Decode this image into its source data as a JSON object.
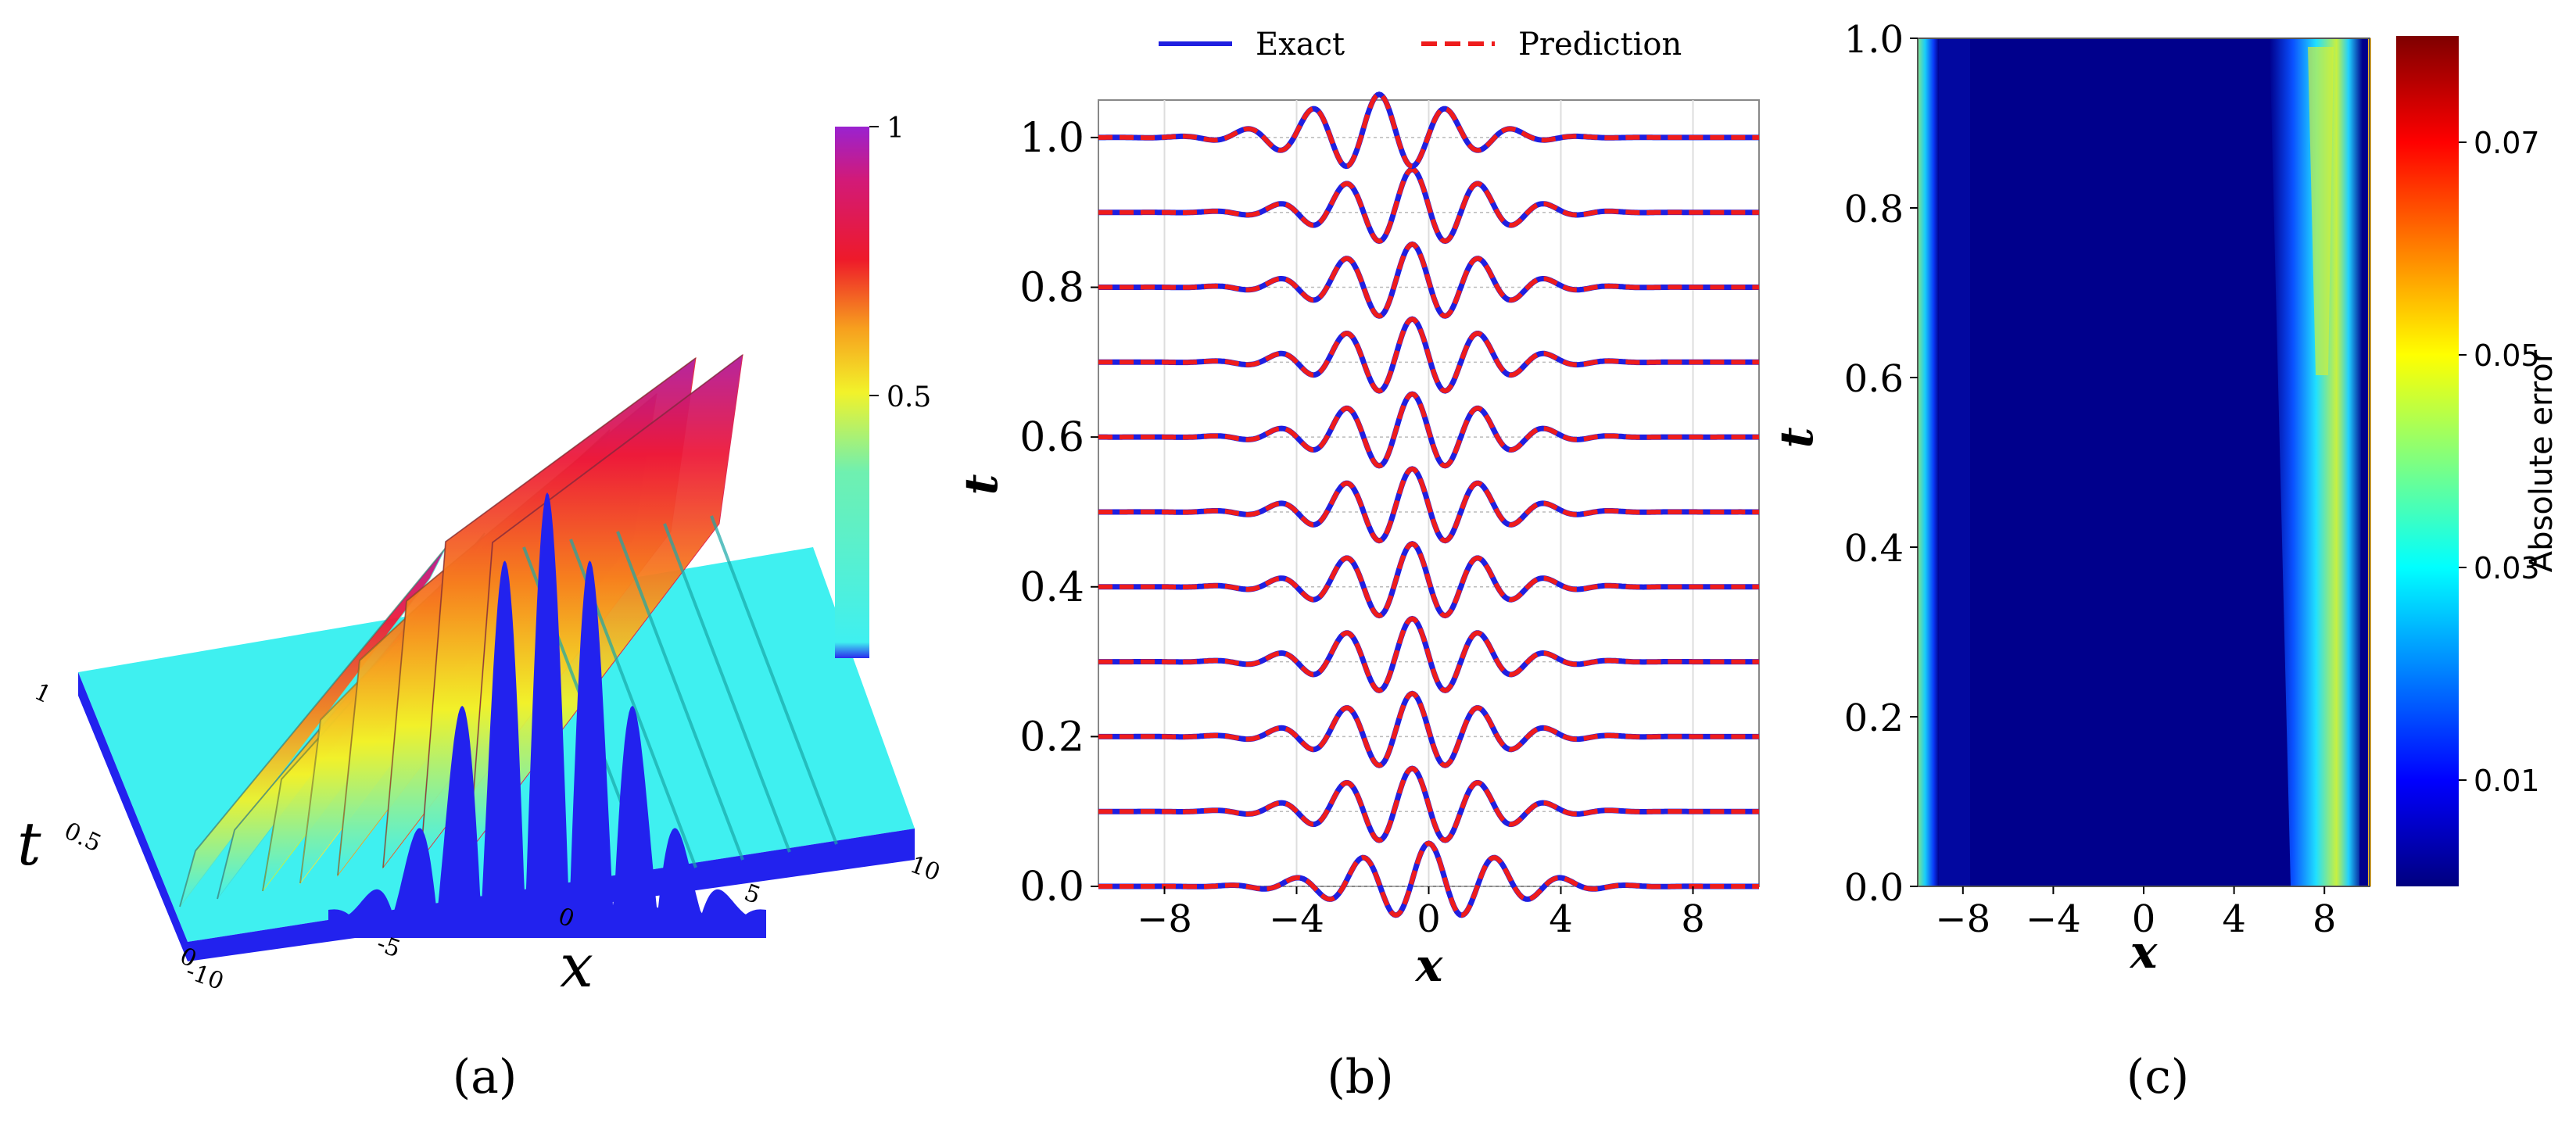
{
  "panel_a": {
    "caption": "(a)",
    "x_axis_label": "x",
    "t_axis_label": "t",
    "x_ticks": [
      "-10",
      "-5",
      "0",
      "5",
      "10"
    ],
    "t_ticks": [
      "0",
      "0.5",
      "1"
    ],
    "colorbar_ticks": [
      "1",
      "0.5"
    ],
    "colors": {
      "floor": "#2222ee",
      "cyan": "#3ff0f0"
    }
  },
  "panel_b": {
    "caption": "(b)",
    "xlabel": "x",
    "ylabel": "t",
    "legend": {
      "exact": "Exact",
      "prediction": "Prediction"
    },
    "x_ticks": [
      "−8",
      "−4",
      "0",
      "4",
      "8"
    ],
    "y_ticks": [
      "0.0",
      "0.2",
      "0.4",
      "0.6",
      "0.8",
      "1.0"
    ],
    "colors": {
      "exact": "#1f1fe0",
      "prediction": "#ee1c1c"
    }
  },
  "panel_c": {
    "caption": "(c)",
    "xlabel": "x",
    "ylabel": "t",
    "colorbar_label": "Absolute error",
    "x_ticks": [
      "−8",
      "−4",
      "0",
      "4",
      "8"
    ],
    "y_ticks": [
      "0.0",
      "0.2",
      "0.4",
      "0.6",
      "0.8",
      "1.0"
    ],
    "colorbar_ticks": [
      "0.01",
      "0.03",
      "0.05",
      "0.07"
    ]
  },
  "chart_data": [
    {
      "type": "surface",
      "panel": "a",
      "title": "",
      "xlabel": "x",
      "ylabel": "t",
      "xlim": [
        -10,
        10
      ],
      "ylim": [
        0,
        1
      ],
      "zlim": [
        0,
        1
      ],
      "colorbar_range": [
        0,
        1
      ],
      "peak_height": 1.0
    },
    {
      "type": "line",
      "panel": "b",
      "xlabel": "x",
      "ylabel": "t",
      "xlim": [
        -10,
        10
      ],
      "ylim": [
        0,
        1.05
      ],
      "t_slices": [
        0.0,
        0.1,
        0.2,
        0.3,
        0.4,
        0.5,
        0.6,
        0.7,
        0.8,
        0.9,
        1.0
      ],
      "peak_shift_per_slice": [
        0.0,
        -0.5,
        -0.5,
        -0.5,
        -0.5,
        -0.5,
        -0.5,
        -0.5,
        -0.5,
        -0.5,
        -1.5
      ],
      "peak_amplitude": 0.05,
      "series": [
        {
          "name": "Exact",
          "style": "solid"
        },
        {
          "name": "Prediction",
          "style": "dashed"
        }
      ]
    },
    {
      "type": "heatmap",
      "panel": "c",
      "xlabel": "x",
      "ylabel": "t",
      "xlim": [
        -10,
        10
      ],
      "ylim": [
        0,
        1
      ],
      "colorbar_label": "Absolute error",
      "colorbar_range": [
        0,
        0.08
      ],
      "colorbar_ticks": [
        0.01,
        0.03,
        0.05,
        0.07
      ],
      "error_bands": [
        {
          "x_start": -10,
          "x_end": -9.2,
          "max_error": 0.035
        },
        {
          "x_start": 7.2,
          "x_end": 9.5,
          "max_error": 0.052
        }
      ]
    }
  ]
}
